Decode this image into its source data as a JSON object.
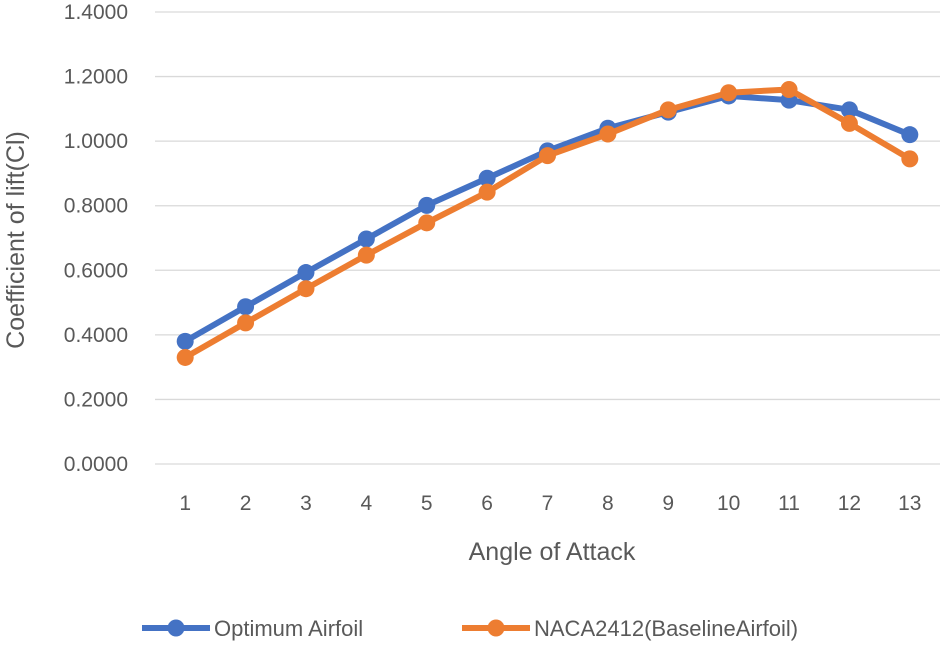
{
  "chart_data": {
    "type": "line",
    "title": "",
    "xlabel": "Angle of Attack",
    "ylabel": "Coefficient of lift(Cl)",
    "categories": [
      "1",
      "2",
      "3",
      "4",
      "5",
      "6",
      "7",
      "8",
      "9",
      "10",
      "11",
      "12",
      "13"
    ],
    "ylim": [
      0,
      1.4
    ],
    "yticks": [
      "0.0000",
      "0.2000",
      "0.4000",
      "0.6000",
      "0.8000",
      "1.0000",
      "1.2000",
      "1.4000"
    ],
    "grid": true,
    "legend_position": "bottom",
    "series": [
      {
        "name": "Optimum Airfoil",
        "color": "#4472C4",
        "values": [
          0.38,
          0.487,
          0.593,
          0.697,
          0.801,
          0.885,
          0.97,
          1.04,
          1.09,
          1.14,
          1.127,
          1.097,
          1.02
        ]
      },
      {
        "name": "NACA2412(BaselineAirfoil)",
        "color": "#ED7D31",
        "values": [
          0.33,
          0.437,
          0.543,
          0.647,
          0.747,
          0.842,
          0.955,
          1.022,
          1.097,
          1.15,
          1.16,
          1.055,
          0.945
        ]
      }
    ]
  }
}
